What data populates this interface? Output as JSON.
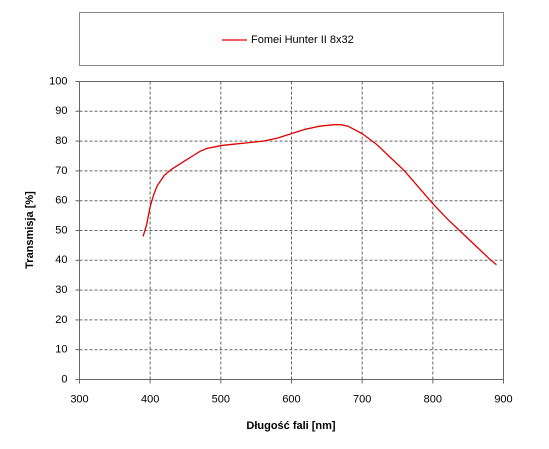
{
  "chart_data": {
    "type": "line",
    "xlabel": "Długość fali [nm]",
    "ylabel": "Transmisja [%]",
    "x": [
      390,
      395,
      400,
      405,
      410,
      420,
      430,
      440,
      450,
      460,
      470,
      480,
      490,
      500,
      520,
      540,
      560,
      580,
      600,
      620,
      640,
      660,
      670,
      680,
      700,
      720,
      740,
      760,
      780,
      800,
      820,
      840,
      860,
      880,
      890
    ],
    "series": [
      {
        "name": "Fomei Hunter II 8x32",
        "color": "#e00000",
        "values": [
          48,
          52,
          58,
          62,
          65,
          68.5,
          70.5,
          72,
          73.5,
          75,
          76.5,
          77.5,
          78,
          78.5,
          79,
          79.5,
          80,
          81,
          82.5,
          84,
          85,
          85.5,
          85.5,
          85,
          82.5,
          79,
          74.5,
          70,
          64.5,
          59,
          54,
          49.5,
          45,
          40.5,
          38.5
        ]
      }
    ],
    "xlim": [
      300,
      900
    ],
    "xticks": [
      300,
      400,
      500,
      600,
      700,
      800,
      900
    ],
    "ylim": [
      0,
      100
    ],
    "yticks": [
      0,
      10,
      20,
      30,
      40,
      50,
      60,
      70,
      80,
      90,
      100
    ],
    "grid": true
  }
}
